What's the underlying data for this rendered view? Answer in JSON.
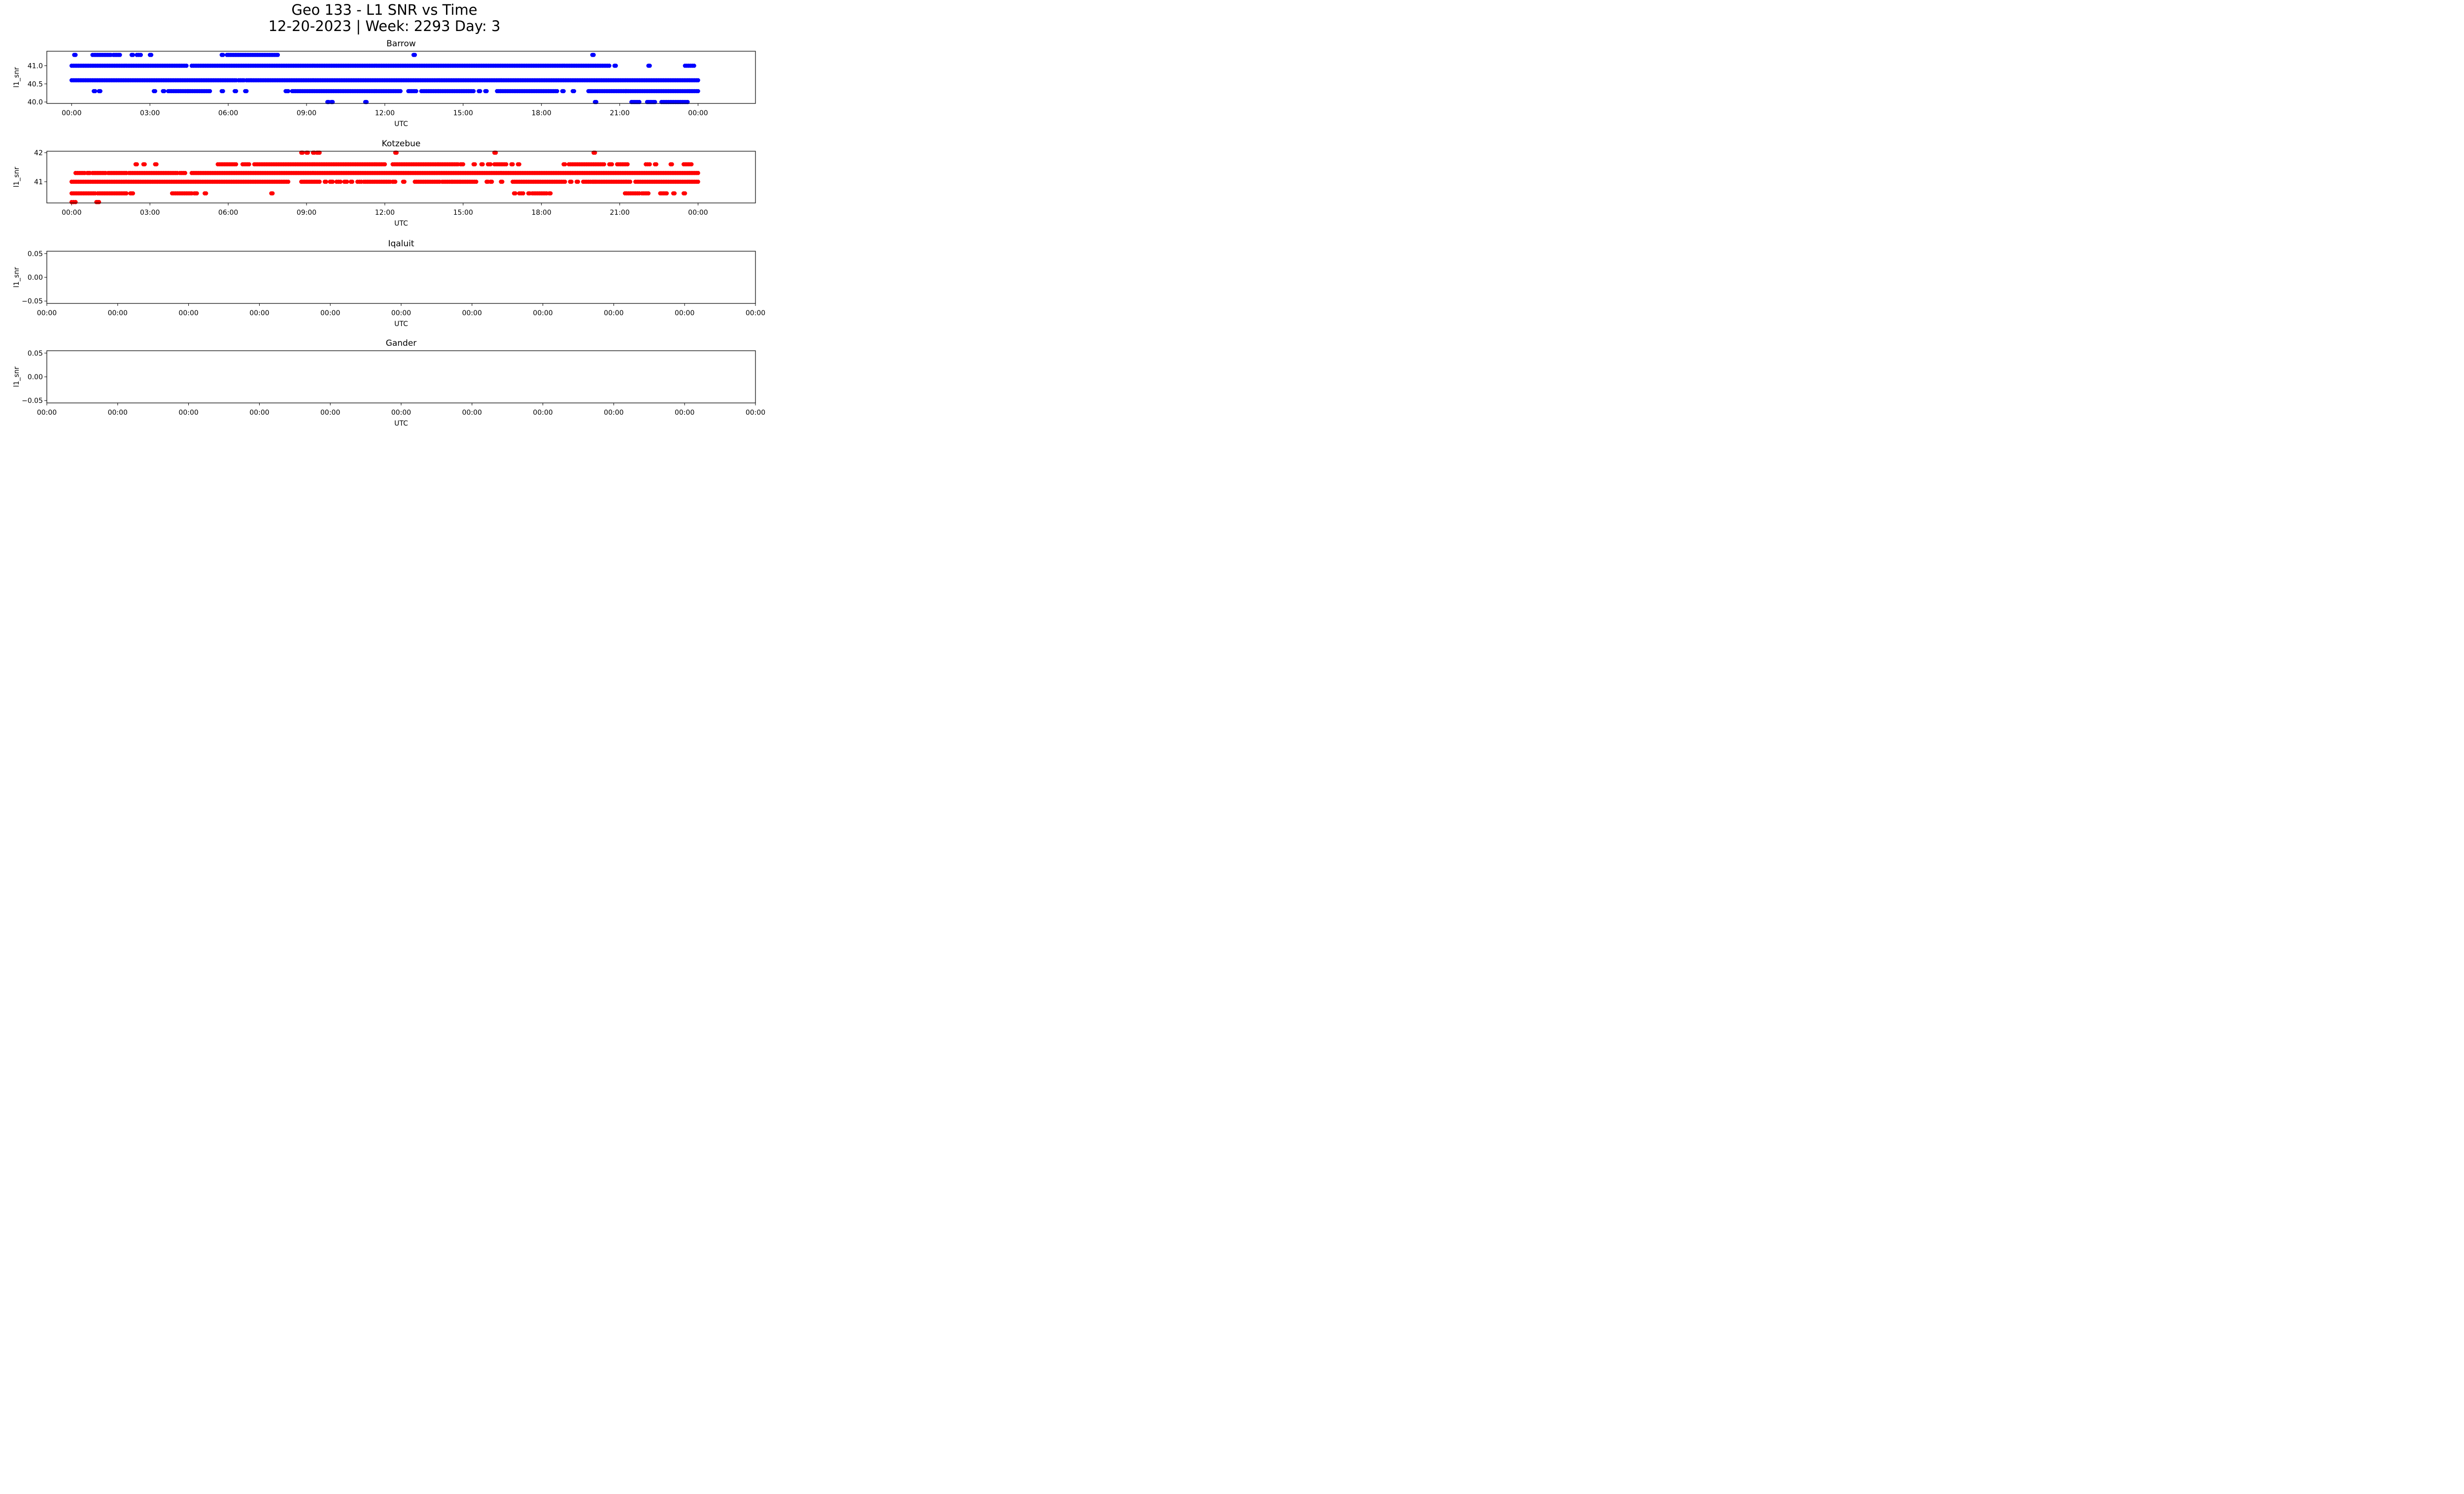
{
  "figure": {
    "title_line1": "Geo 133 - L1 SNR vs Time",
    "title_line2": "12-20-2023 | Week: 2293 Day: 3"
  },
  "chart_data": [
    {
      "type": "scatter",
      "title": "Barrow",
      "xlabel": "UTC",
      "ylabel": "l1_snr",
      "color": "#0000ff",
      "x_unit": "hours",
      "xlim": [
        "23:45",
        "26:10 (02:10 next day)"
      ],
      "x_ticks": [
        0,
        3,
        6,
        9,
        12,
        15,
        18,
        21,
        24
      ],
      "x_tick_labels": [
        "00:00",
        "03:00",
        "06:00",
        "09:00",
        "12:00",
        "15:00",
        "18:00",
        "21:00",
        "00:00"
      ],
      "ylim": [
        39.96,
        41.4
      ],
      "y_ticks": [
        40.0,
        40.5,
        41.0
      ],
      "y_tick_labels": [
        "40.0",
        "40.5",
        "41.0"
      ],
      "series": [
        {
          "y": 41.3,
          "segments": [
            [
              0.1,
              0.15
            ],
            [
              0.8,
              1.5
            ],
            [
              1.6,
              1.85
            ],
            [
              2.3,
              2.35
            ],
            [
              2.5,
              2.65
            ],
            [
              3.0,
              3.05
            ],
            [
              5.75,
              5.8
            ],
            [
              5.95,
              7.9
            ],
            [
              13.1,
              13.15
            ],
            [
              19.95,
              20.0
            ]
          ]
        },
        {
          "y": 41.0,
          "segments": [
            [
              0.0,
              4.4
            ],
            [
              4.6,
              20.6
            ],
            [
              20.8,
              20.85
            ],
            [
              22.1,
              22.15
            ],
            [
              23.5,
              23.85
            ]
          ]
        },
        {
          "y": 40.6,
          "segments": [
            [
              0.0,
              6.3
            ],
            [
              6.4,
              6.6
            ],
            [
              6.7,
              24.0
            ]
          ]
        },
        {
          "y": 40.3,
          "segments": [
            [
              0.85,
              0.9
            ],
            [
              1.05,
              1.1
            ],
            [
              3.15,
              3.2
            ],
            [
              3.5,
              3.55
            ],
            [
              3.7,
              5.3
            ],
            [
              5.75,
              5.8
            ],
            [
              6.25,
              6.3
            ],
            [
              6.65,
              6.7
            ],
            [
              8.2,
              8.3
            ],
            [
              8.45,
              12.6
            ],
            [
              12.9,
              13.2
            ],
            [
              13.4,
              15.4
            ],
            [
              15.6,
              15.65
            ],
            [
              15.85,
              15.9
            ],
            [
              16.3,
              18.6
            ],
            [
              18.8,
              18.85
            ],
            [
              19.2,
              19.25
            ],
            [
              19.8,
              19.9
            ],
            [
              19.95,
              24.0
            ]
          ]
        },
        {
          "y": 40.0,
          "segments": [
            [
              9.8,
              9.85
            ],
            [
              9.95,
              10.0
            ],
            [
              11.25,
              11.3
            ],
            [
              20.05,
              20.1
            ],
            [
              21.45,
              21.75
            ],
            [
              22.05,
              22.35
            ],
            [
              22.6,
              23.6
            ]
          ]
        }
      ]
    },
    {
      "type": "scatter",
      "title": "Kotzebue",
      "xlabel": "UTC",
      "ylabel": "l1_snr",
      "color": "#ff0000",
      "x_unit": "hours",
      "xlim": [
        "23:45",
        "26:10 (02:10 next day)"
      ],
      "x_ticks": [
        0,
        3,
        6,
        9,
        12,
        15,
        18,
        21,
        24
      ],
      "x_tick_labels": [
        "00:00",
        "03:00",
        "06:00",
        "09:00",
        "12:00",
        "15:00",
        "18:00",
        "21:00",
        "00:00"
      ],
      "ylim": [
        40.27,
        42.05
      ],
      "y_ticks": [
        41,
        42
      ],
      "y_tick_labels": [
        "41",
        "42"
      ],
      "series": [
        {
          "y": 42.0,
          "segments": [
            [
              8.8,
              8.85
            ],
            [
              9.0,
              9.05
            ],
            [
              9.25,
              9.3
            ],
            [
              9.4,
              9.5
            ],
            [
              12.4,
              12.45
            ],
            [
              16.2,
              16.25
            ],
            [
              20.0,
              20.05
            ]
          ]
        },
        {
          "y": 41.6,
          "segments": [
            [
              2.45,
              2.5
            ],
            [
              2.75,
              2.8
            ],
            [
              3.2,
              3.25
            ],
            [
              5.6,
              6.3
            ],
            [
              6.55,
              6.8
            ],
            [
              7.0,
              12.0
            ],
            [
              12.3,
              14.8
            ],
            [
              14.9,
              15.0
            ],
            [
              15.4,
              15.45
            ],
            [
              15.7,
              15.75
            ],
            [
              15.95,
              16.05
            ],
            [
              16.2,
              16.65
            ],
            [
              16.85,
              16.9
            ],
            [
              17.1,
              17.15
            ],
            [
              18.85,
              18.9
            ],
            [
              19.05,
              20.4
            ],
            [
              20.6,
              20.7
            ],
            [
              20.9,
              21.3
            ],
            [
              22.0,
              22.15
            ],
            [
              22.35,
              22.4
            ],
            [
              22.95,
              23.0
            ],
            [
              23.45,
              23.75
            ]
          ]
        },
        {
          "y": 41.3,
          "segments": [
            [
              0.15,
              0.5
            ],
            [
              0.6,
              0.7
            ],
            [
              0.8,
              1.3
            ],
            [
              1.4,
              2.1
            ],
            [
              2.2,
              4.05
            ],
            [
              4.15,
              4.35
            ],
            [
              4.6,
              24.0
            ]
          ]
        },
        {
          "y": 41.0,
          "segments": [
            [
              0.0,
              8.3
            ],
            [
              8.8,
              9.5
            ],
            [
              9.7,
              9.75
            ],
            [
              9.9,
              10.0
            ],
            [
              10.15,
              10.3
            ],
            [
              10.45,
              10.55
            ],
            [
              10.7,
              10.75
            ],
            [
              10.95,
              11.1
            ],
            [
              11.2,
              12.2
            ],
            [
              12.3,
              12.4
            ],
            [
              12.7,
              12.75
            ],
            [
              13.15,
              14.1
            ],
            [
              14.2,
              14.55
            ],
            [
              14.6,
              14.85
            ],
            [
              14.9,
              15.5
            ],
            [
              15.9,
              15.95
            ],
            [
              16.05,
              16.1
            ],
            [
              16.45,
              16.5
            ],
            [
              16.9,
              18.9
            ],
            [
              19.1,
              19.15
            ],
            [
              19.35,
              19.4
            ],
            [
              19.6,
              19.95
            ],
            [
              20.0,
              20.05
            ],
            [
              20.1,
              21.4
            ],
            [
              21.6,
              24.0
            ]
          ]
        },
        {
          "y": 40.6,
          "segments": [
            [
              0.0,
              0.9
            ],
            [
              1.0,
              2.1
            ],
            [
              2.25,
              2.35
            ],
            [
              3.85,
              4.6
            ],
            [
              4.7,
              4.8
            ],
            [
              5.1,
              5.15
            ],
            [
              7.65,
              7.7
            ],
            [
              16.95,
              17.0
            ],
            [
              17.15,
              17.3
            ],
            [
              17.5,
              17.55
            ],
            [
              17.65,
              18.2
            ],
            [
              18.3,
              18.35
            ],
            [
              21.2,
              21.75
            ],
            [
              21.85,
              22.1
            ],
            [
              22.55,
              22.8
            ],
            [
              23.05,
              23.1
            ],
            [
              23.45,
              23.5
            ]
          ]
        },
        {
          "y": 40.3,
          "segments": [
            [
              0.0,
              0.15
            ],
            [
              0.95,
              1.05
            ]
          ]
        }
      ]
    },
    {
      "type": "scatter",
      "title": "Iqaluit",
      "xlabel": "UTC",
      "ylabel": "l1_snr",
      "ylim": [
        -0.055,
        0.055
      ],
      "y_ticks": [
        -0.05,
        0.0,
        0.05
      ],
      "y_tick_labels": [
        "−0.05",
        "0.00",
        "0.05"
      ],
      "x_tick_labels": [
        "00:00",
        "00:00",
        "00:00",
        "00:00",
        "00:00",
        "00:00",
        "00:00",
        "00:00",
        "00:00",
        "00:00",
        "00:00"
      ],
      "series": []
    },
    {
      "type": "scatter",
      "title": "Gander",
      "xlabel": "UTC",
      "ylabel": "l1_snr",
      "ylim": [
        -0.055,
        0.055
      ],
      "y_ticks": [
        -0.05,
        0.0,
        0.05
      ],
      "y_tick_labels": [
        "−0.05",
        "0.00",
        "0.05"
      ],
      "x_tick_labels": [
        "00:00",
        "00:00",
        "00:00",
        "00:00",
        "00:00",
        "00:00",
        "00:00",
        "00:00",
        "00:00",
        "00:00",
        "00:00"
      ],
      "series": []
    }
  ]
}
